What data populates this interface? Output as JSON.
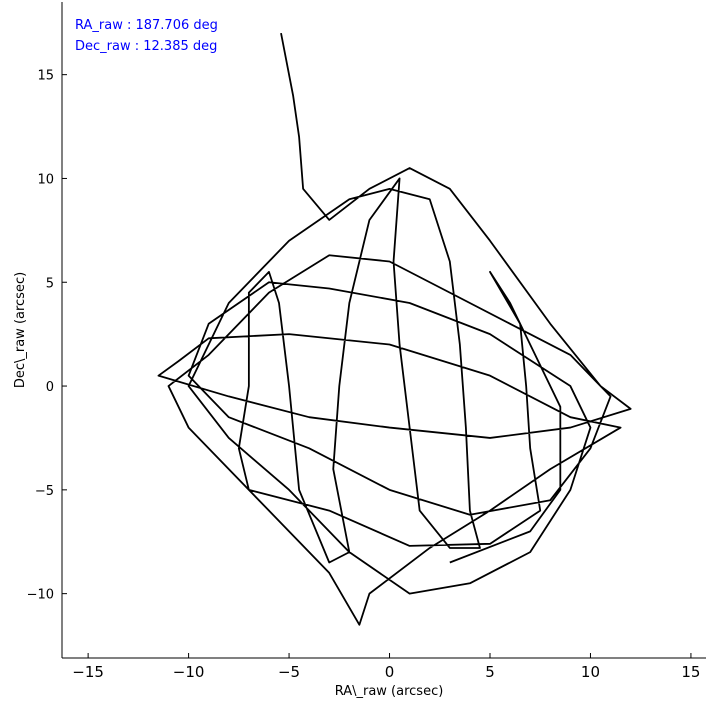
{
  "chart_data": {
    "type": "line",
    "annotations": [
      "RA_raw : 187.706 deg",
      "Dec_raw : 12.385 deg"
    ],
    "x_label": "RA\\_raw (arcsec)",
    "y_label": "Dec\\_raw (arcsec)",
    "xlim": [
      -16.3,
      15.75
    ],
    "ylim": [
      -13.1,
      18.5
    ],
    "xticks": [
      {
        "value": -15,
        "label": "−15"
      },
      {
        "value": -10,
        "label": "−10"
      },
      {
        "value": -5,
        "label": "−5"
      },
      0,
      5,
      10,
      15
    ],
    "yticks": [
      {
        "value": -10,
        "label": "−10"
      },
      {
        "value": -5,
        "label": "−5"
      },
      0,
      5,
      10,
      15
    ],
    "grid": false,
    "series": [
      {
        "color": "#000000",
        "x": [
          -5.4,
          -4.8,
          -4.5,
          -4.3,
          -3,
          -1,
          1,
          3,
          5,
          8,
          10.5,
          12,
          9,
          5,
          0,
          -4,
          -8,
          -11.5,
          -10.5,
          -9,
          -5,
          0,
          5,
          9,
          11.5,
          8,
          5,
          2,
          -1,
          -1.5,
          -3,
          -5,
          -8,
          -10,
          -11,
          -9,
          -6,
          -3,
          0,
          3,
          6,
          9,
          11,
          10,
          8,
          4,
          0,
          -4,
          -8,
          -10,
          -9,
          -6,
          -3,
          1,
          5,
          9,
          10,
          9,
          7,
          4,
          1,
          -2,
          -5,
          -8,
          -10,
          -8,
          -5,
          -2,
          0,
          2,
          3,
          3.5,
          3.8,
          4,
          4.5,
          3,
          1.5,
          1,
          0.5,
          0.2,
          0.5,
          -1,
          -2,
          -2.5,
          -2.8,
          -2,
          -3,
          -4.5,
          -5,
          -5.5,
          -6,
          -7,
          -7,
          -7.5,
          -7,
          -3,
          1,
          5,
          7.5,
          7,
          6.8,
          6.5,
          5,
          6,
          8.5,
          8.5,
          7,
          3
        ],
        "values": [
          17,
          14,
          12,
          9.5,
          8,
          9.5,
          10.5,
          9.5,
          7,
          3,
          0,
          -1.1,
          -2,
          -2.5,
          -2,
          -1.5,
          -0.5,
          0.5,
          1.2,
          2.3,
          2.5,
          2,
          0.5,
          -1.5,
          -2,
          -4,
          -6,
          -7.8,
          -10,
          -11.5,
          -9,
          -7,
          -4,
          -2,
          0,
          1.5,
          4.5,
          6.3,
          6,
          4.5,
          3,
          1.5,
          -0.5,
          -3,
          -5.5,
          -6.2,
          -5,
          -3,
          -1.5,
          0.5,
          3,
          5,
          4.7,
          4,
          2.5,
          0,
          -2,
          -5,
          -8,
          -9.5,
          -10,
          -8,
          -5,
          -2.5,
          0,
          4,
          7,
          9,
          9.5,
          9,
          6,
          2,
          -2,
          -6,
          -7.8,
          -7.8,
          -6,
          -2,
          2,
          6,
          10,
          8,
          4,
          0,
          -4,
          -8,
          -8.5,
          -5,
          0,
          4,
          5.5,
          4.5,
          0,
          -3,
          -5,
          -6,
          -7.7,
          -7.6,
          -6,
          -3,
          0,
          3,
          5.5,
          4,
          -1,
          -5,
          -7,
          -8.5
        ]
      }
    ]
  }
}
